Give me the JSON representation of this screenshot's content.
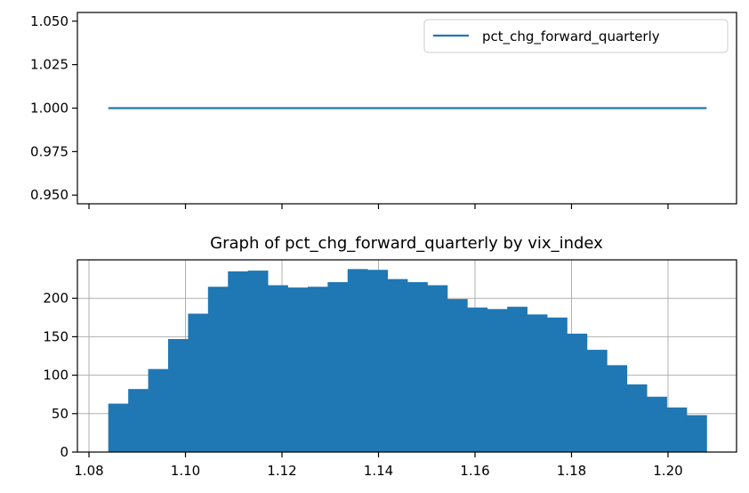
{
  "chart_data": [
    {
      "type": "line",
      "title": "",
      "xlabel": "",
      "ylabel": "",
      "ylim": [
        0.945,
        1.055
      ],
      "yticks": [
        0.95,
        0.975,
        1.0,
        1.025,
        1.05
      ],
      "ytick_labels": [
        "0.950",
        "0.975",
        "1.000",
        "1.025",
        "1.050"
      ],
      "xlim": [
        1.0776,
        1.2142
      ],
      "xticks": [
        1.08,
        1.1,
        1.12,
        1.14,
        1.16,
        1.18,
        1.2
      ],
      "xtick_labels_visible": false,
      "grid": false,
      "legend": "top-right",
      "series": [
        {
          "name": "pct_chg_forward_quarterly",
          "x": [
            1.084,
            1.208
          ],
          "values": [
            1.0,
            1.0
          ],
          "color": "#1f77b4"
        }
      ]
    },
    {
      "type": "bar",
      "title": "Graph of pct_chg_forward_quarterly by vix_index",
      "xlabel": "",
      "ylabel": "",
      "xlim": [
        1.0776,
        1.2142
      ],
      "ylim": [
        0,
        250
      ],
      "xticks": [
        1.08,
        1.1,
        1.12,
        1.14,
        1.16,
        1.18,
        1.2
      ],
      "xtick_labels": [
        "1.08",
        "1.10",
        "1.12",
        "1.14",
        "1.16",
        "1.18",
        "1.20"
      ],
      "yticks": [
        0,
        50,
        100,
        150,
        200
      ],
      "ytick_labels": [
        "0",
        "50",
        "100",
        "150",
        "200"
      ],
      "grid": true,
      "bin_range": [
        1.084,
        1.208
      ],
      "values": [
        63,
        82,
        108,
        147,
        180,
        215,
        235,
        236,
        217,
        214,
        215,
        221,
        238,
        237,
        225,
        221,
        217,
        199,
        188,
        186,
        189,
        179,
        175,
        154,
        133,
        113,
        88,
        72,
        58,
        48
      ],
      "color": "#1f77b4"
    }
  ]
}
